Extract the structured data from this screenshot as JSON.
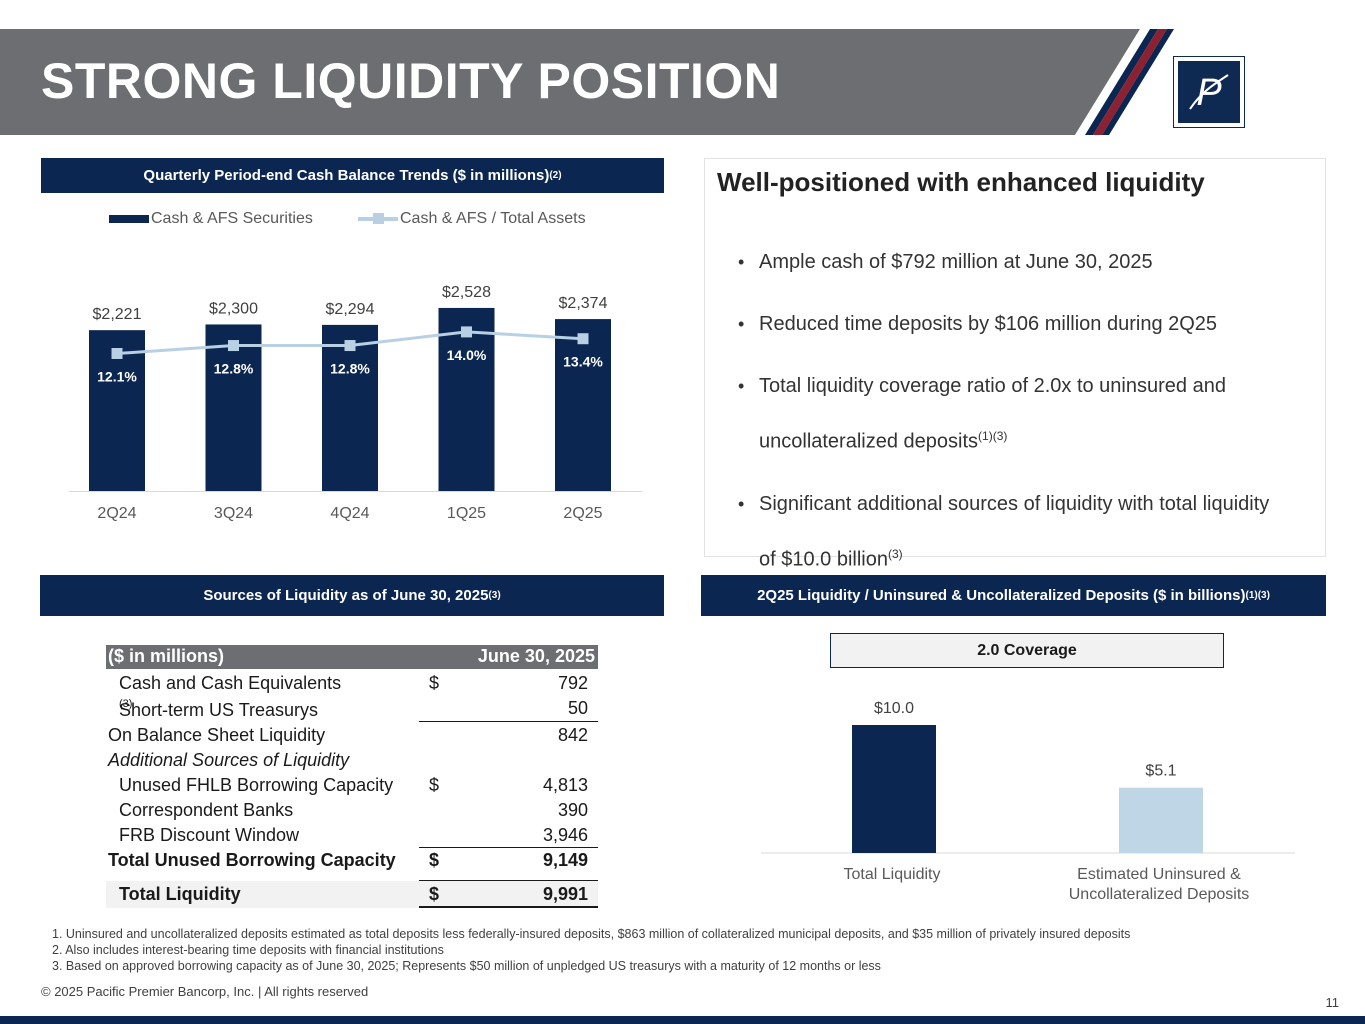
{
  "title": "STRONG LIQUIDITY POSITION",
  "colors": {
    "navy": "#0b2650",
    "light_blue": "#b9cfe4",
    "banner_gray": "#6d6e71",
    "accent_red": "#8b2131"
  },
  "logo": {
    "icon": "pacific-premier-logo-icon"
  },
  "cash_section": {
    "title": "Quarterly Period-end Cash Balance Trends ($ in millions)",
    "title_sup": "(2)",
    "legend_bar": "Cash & AFS Securities",
    "legend_line": "Cash & AFS / Total Assets"
  },
  "chart_data": [
    {
      "type": "bar",
      "title": "Quarterly Period-end Cash Balance Trends ($ in millions)",
      "categories": [
        "2Q24",
        "3Q24",
        "4Q24",
        "1Q25",
        "2Q25"
      ],
      "series": [
        {
          "name": "Cash & AFS Securities",
          "type": "bar",
          "values": [
            2221,
            2300,
            2294,
            2528,
            2374
          ],
          "labels": [
            "$2,221",
            "$2,300",
            "$2,294",
            "$2,528",
            "$2,374"
          ],
          "color": "#0b2650"
        },
        {
          "name": "Cash & AFS / Total Assets",
          "type": "line",
          "values": [
            12.1,
            12.8,
            12.8,
            14.0,
            13.4
          ],
          "labels": [
            "12.1%",
            "12.8%",
            "12.8%",
            "14.0%",
            "13.4%"
          ],
          "color": "#b9cfe4"
        }
      ],
      "legend": "top"
    },
    {
      "type": "bar",
      "title": "2Q25 Liquidity / Uninsured & Uncollateralized Deposits ($ in billions)",
      "categories": [
        "Total Liquidity",
        "Estimated Uninsured & Uncollateralized Deposits"
      ],
      "values": [
        10.0,
        5.1
      ],
      "labels": [
        "$10.0",
        "$5.1"
      ],
      "colors": [
        "#0b2650",
        "#bfd6e6"
      ],
      "annotation": "2.0 Coverage"
    }
  ],
  "liquidity_panel": {
    "title": "Well-positioned with enhanced liquidity",
    "b1": "Ample cash of $792 million at June 30, 2025",
    "b2": "Reduced time deposits by $106 million during 2Q25",
    "b3a": "Total liquidity coverage ratio of 2.0x to uninsured and",
    "b3b": "uncollateralized deposits",
    "b3_sup": "(1)(3)",
    "b4a": "Significant additional sources of liquidity with total liquidity",
    "b4b": "of $10.0 billion",
    "b4_sup": "(3)"
  },
  "sources_section": {
    "title": "Sources of Liquidity as of June 30, 2025",
    "title_sup": "(3)"
  },
  "table": {
    "header_label": "($ in millions)",
    "header_date": "June 30, 2025",
    "rows": [
      {
        "label": "Cash and Cash Equivalents",
        "dollar": "$",
        "value": "792"
      },
      {
        "label": "Short-term US Treasurys",
        "sup": "(3)",
        "dollar": "",
        "value": "50"
      },
      {
        "label": "On Balance Sheet Liquidity",
        "dollar": "",
        "value": "842"
      },
      {
        "label": "Additional Sources of Liquidity",
        "dollar": "",
        "value": ""
      },
      {
        "label": "Unused FHLB Borrowing Capacity",
        "dollar": "$",
        "value": "4,813"
      },
      {
        "label": "Correspondent Banks",
        "dollar": "",
        "value": "390"
      },
      {
        "label": "FRB Discount Window",
        "dollar": "",
        "value": "3,946"
      },
      {
        "label": "Total Unused Borrowing Capacity",
        "dollar": "$",
        "value": "9,149"
      },
      {
        "label": "Total Liquidity",
        "dollar": "$",
        "value": "9,991"
      }
    ]
  },
  "coverage_section": {
    "title": "2Q25 Liquidity / Uninsured & Uncollateralized Deposits ($ in billions)",
    "title_sup": "(1)(3)",
    "coverage_label": "2.0 Coverage",
    "cat1": "Total Liquidity",
    "cat2a": "Estimated Uninsured &",
    "cat2b": "Uncollateralized Deposits"
  },
  "footnotes": [
    "1. Uninsured and uncollateralized deposits estimated as total deposits less federally-insured deposits, $863 million of collateralized municipal deposits, and $35 million of privately insured deposits",
    "2. Also includes interest-bearing time deposits with financial institutions",
    "3. Based on approved borrowing capacity as of June 30, 2025; Represents $50 million of unpledged US treasurys with a maturity of 12 months or less"
  ],
  "copyright": "© 2025 Pacific Premier Bancorp, Inc. | All rights reserved",
  "page_number": "11"
}
